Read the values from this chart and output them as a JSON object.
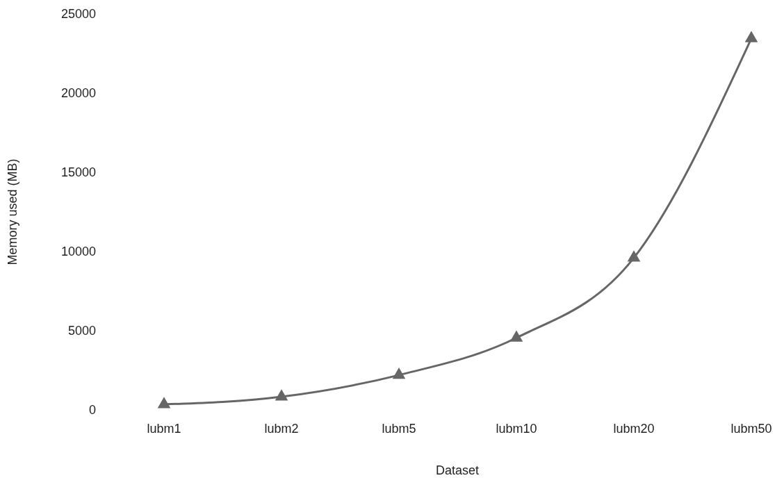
{
  "chart_data": {
    "type": "line",
    "xlabel": "Dataset",
    "ylabel": "Memory used (MB)",
    "categories": [
      "lubm1",
      "lubm2",
      "lubm5",
      "lubm10",
      "lubm20",
      "lubm50"
    ],
    "series": [
      {
        "color": "#666666",
        "values": [
          350,
          830,
          2200,
          4550,
          9600,
          23450
        ]
      }
    ],
    "ylim": [
      0,
      25000
    ],
    "yticks": [
      0,
      5000,
      10000,
      15000,
      20000,
      25000
    ],
    "marker": "triangle",
    "line_style": "solid",
    "grid": false
  }
}
